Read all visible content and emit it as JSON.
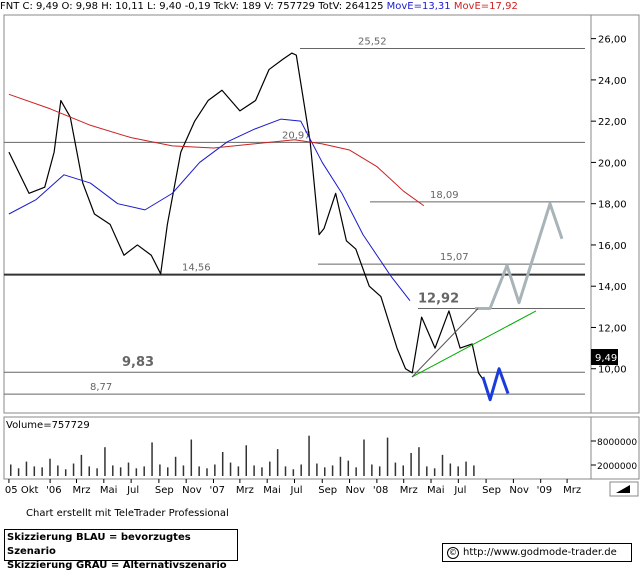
{
  "header": {
    "symbol": "FNT",
    "close_label": "C: 9,49",
    "open_label": "O: 9,98",
    "high_label": "H: 10,11",
    "low_label": "L: 9,40",
    "change_label": "-0,19",
    "tick_label": "TckV: 189",
    "volume_label": "V: 757729",
    "total_label": "TotV: 264125",
    "ma_short_label": "MovE=13,31",
    "ma_long_label": "MovE=17,92"
  },
  "colors": {
    "price": "#000000",
    "ma_short": "#1a1acc",
    "ma_long": "#cc2222",
    "scenario_blue": "#1a3cdd",
    "scenario_grey": "#a8b4b8",
    "trend": "#00aa00",
    "level_line": "#555555"
  },
  "chart_data": {
    "type": "line",
    "title": "",
    "y_axis": {
      "scale": "linear",
      "ticks": [
        "26,00",
        "24,00",
        "22,00",
        "20,00",
        "18,00",
        "16,00",
        "14,00",
        "12,00",
        "10,00"
      ],
      "ylim": [
        8,
        27
      ]
    },
    "x_axis": {
      "ticks": [
        "05 Okt",
        "'06",
        "Mrz",
        "Mai",
        "Jul",
        "Sep",
        "Nov",
        "'07",
        "Mrz",
        "Mai",
        "Jul",
        "Sep",
        "Nov",
        "'08",
        "Mrz",
        "Mai",
        "Jul",
        "Sep",
        "Nov",
        "'09",
        "Mrz"
      ]
    },
    "last_price_label": "9,49",
    "levels": [
      {
        "value": 25.52,
        "label": "25,52"
      },
      {
        "value": 20.97,
        "label": "20,97"
      },
      {
        "value": 18.09,
        "label": "18,09"
      },
      {
        "value": 15.07,
        "label": "15,07"
      },
      {
        "value": 14.56,
        "label": "14,56"
      },
      {
        "value": 12.92,
        "label": "12,92"
      },
      {
        "value": 9.83,
        "label": "9,83"
      },
      {
        "value": 8.77,
        "label": "8,77"
      }
    ],
    "series": [
      {
        "key": "price",
        "x": [
          "2005-10-01",
          "2005-11-15",
          "2005-12-20",
          "2006-01-10",
          "2006-01-25",
          "2006-02-15",
          "2006-03-15",
          "2006-04-10",
          "2006-05-15",
          "2006-06-15",
          "2006-07-15",
          "2006-08-15",
          "2006-09-05",
          "2006-09-20",
          "2006-10-20",
          "2006-11-20",
          "2006-12-20",
          "2007-01-20",
          "2007-03-01",
          "2007-04-05",
          "2007-05-05",
          "2007-06-05",
          "2007-06-25",
          "2007-07-05",
          "2007-08-05",
          "2007-08-25",
          "2007-09-05",
          "2007-10-01",
          "2007-10-25",
          "2007-11-15",
          "2007-12-15",
          "2008-01-10",
          "2008-02-15",
          "2008-03-05",
          "2008-03-20",
          "2008-04-10",
          "2008-05-10",
          "2008-06-10",
          "2008-07-05",
          "2008-08-01",
          "2008-08-15",
          "2008-08-25"
        ],
        "values": [
          20.5,
          18.5,
          18.8,
          20.5,
          23.0,
          22.2,
          19.0,
          17.5,
          17.0,
          15.5,
          16.0,
          15.5,
          14.6,
          17.0,
          20.5,
          22.0,
          23.0,
          23.5,
          22.5,
          23.0,
          24.5,
          25.0,
          25.3,
          25.2,
          21.0,
          16.5,
          16.8,
          18.5,
          16.2,
          15.8,
          14.0,
          13.5,
          11.0,
          10.0,
          9.8,
          12.5,
          11.0,
          12.8,
          11.0,
          11.2,
          9.8,
          9.49
        ]
      },
      {
        "key": "ma_short",
        "x": [
          "2005-10-01",
          "2005-12-01",
          "2006-02-01",
          "2006-04-01",
          "2006-06-01",
          "2006-08-01",
          "2006-10-01",
          "2006-12-01",
          "2007-02-01",
          "2007-04-01",
          "2007-06-01",
          "2007-07-15",
          "2007-09-01",
          "2007-10-15",
          "2007-12-01",
          "2008-02-01",
          "2008-03-15"
        ],
        "values": [
          17.5,
          18.2,
          19.4,
          19.0,
          18.0,
          17.7,
          18.5,
          20.0,
          21.0,
          21.6,
          22.1,
          22.0,
          20.0,
          18.5,
          16.5,
          14.5,
          13.3
        ]
      },
      {
        "key": "ma_long",
        "x": [
          "2005-10-01",
          "2006-01-01",
          "2006-04-01",
          "2006-07-01",
          "2006-10-01",
          "2007-01-01",
          "2007-04-01",
          "2007-07-01",
          "2007-09-01",
          "2007-11-01",
          "2008-01-01",
          "2008-03-01",
          "2008-04-15"
        ],
        "values": [
          23.3,
          22.6,
          21.8,
          21.2,
          20.8,
          20.7,
          20.9,
          21.1,
          20.9,
          20.6,
          19.8,
          18.6,
          17.9
        ]
      },
      {
        "key": "scenario_blue",
        "x": [
          "2008-08-25",
          "2008-09-10",
          "2008-09-30",
          "2008-10-20"
        ],
        "values": [
          9.6,
          8.5,
          10.0,
          8.8
        ]
      },
      {
        "key": "scenario_grey",
        "x": [
          "2008-03-15",
          "2008-04-15",
          "2008-05-15",
          "2008-06-15",
          "2008-07-25",
          "2008-09-05"
        ],
        "values": [
          12.9,
          15.0,
          13.2,
          18.0,
          16.3,
          0
        ]
      }
    ],
    "volume": {
      "label": "Volume=757729",
      "ticks": [
        "8000000",
        "2000000"
      ],
      "values": [
        1.2,
        0.8,
        1.5,
        1.0,
        0.9,
        1.8,
        1.1,
        0.7,
        1.3,
        2.2,
        1.0,
        0.8,
        3.0,
        1.1,
        0.9,
        1.4,
        0.8,
        1.0,
        3.5,
        1.2,
        0.9,
        2.0,
        1.1,
        3.8,
        1.0,
        0.8,
        1.2,
        2.5,
        1.4,
        1.0,
        3.2,
        1.1,
        0.9,
        1.5,
        2.8,
        1.0,
        0.7,
        1.2,
        4.2,
        1.3,
        0.9,
        1.1,
        2.0,
        1.6,
        0.9,
        3.8,
        1.2,
        1.0,
        4.0,
        1.4,
        1.1,
        2.4,
        3.0,
        1.0,
        0.8,
        2.2,
        1.3,
        1.0,
        1.5,
        1.1
      ]
    }
  },
  "footer": {
    "credit": "Chart erstellt mit TeleTrader Professional",
    "legend_blue": "Skizzierung BLAU = bevorzugtes Szenario",
    "legend_grey": "Skizzierung GRAU = Alternativszenario",
    "source": "http://www.godmode-trader.de",
    "source_icon": "copyright-icon"
  }
}
